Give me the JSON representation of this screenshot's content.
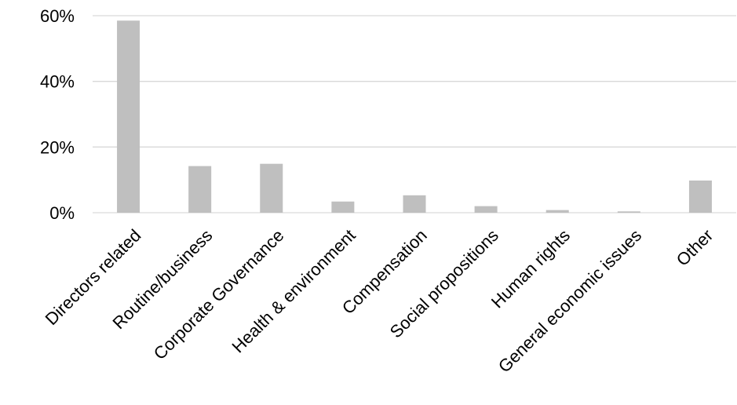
{
  "chart_data": {
    "type": "bar",
    "categories": [
      "Directors related",
      "Routine/business",
      "Corporate Governance",
      "Health & environment",
      "Compensation",
      "Social propositions",
      "Human rights",
      "General economic issues",
      "Other"
    ],
    "values": [
      58.5,
      14.2,
      14.9,
      3.4,
      5.3,
      2.0,
      0.8,
      0.4,
      9.8
    ],
    "title": "",
    "xlabel": "",
    "ylabel": "",
    "ylim": [
      0,
      60
    ],
    "yticks": [
      0,
      20,
      40,
      60
    ],
    "ytick_labels": [
      "0%",
      "20%",
      "40%",
      "60%"
    ],
    "grid": true,
    "legend": "none",
    "bar_color": "#bfbfbf",
    "grid_color": "#d9d9d9"
  }
}
